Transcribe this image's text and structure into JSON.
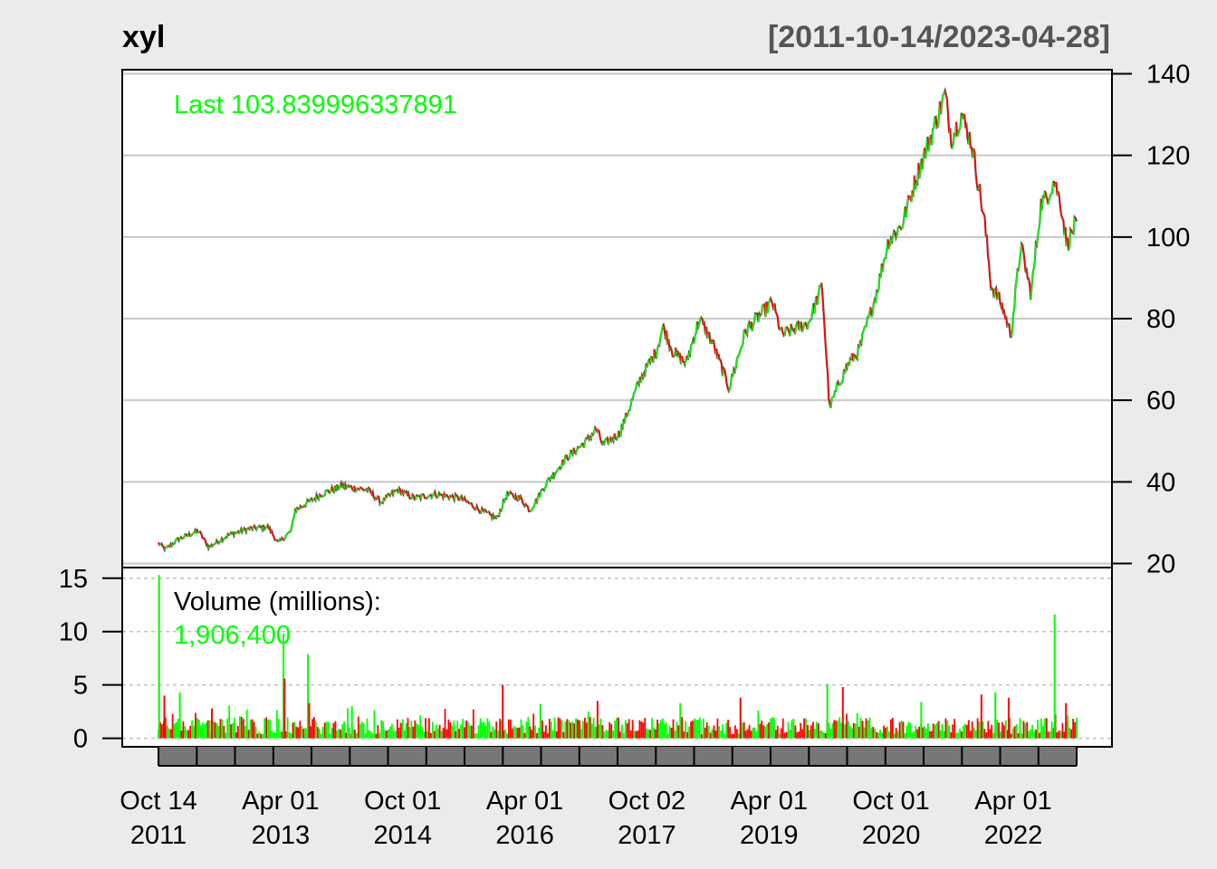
{
  "header": {
    "title": "xyl",
    "date_range": "[2011-10-14/2023-04-28]"
  },
  "price_panel": {
    "last_label": "Last 103.839996337891"
  },
  "volume_panel": {
    "label": "Volume (millions):",
    "value": "1,906,400"
  },
  "chart_data": [
    {
      "type": "line",
      "name": "price",
      "x_tick_labels": [
        [
          "Oct 14",
          "2011"
        ],
        [
          "Apr 01",
          "2013"
        ],
        [
          "Oct 01",
          "2014"
        ],
        [
          "Apr 01",
          "2016"
        ],
        [
          "Oct 02",
          "2017"
        ],
        [
          "Apr 01",
          "2019"
        ],
        [
          "Oct 01",
          "2020"
        ],
        [
          "Apr 01",
          "2022"
        ]
      ],
      "y_ticks": [
        20,
        40,
        60,
        80,
        100,
        120,
        140
      ],
      "ylim": [
        19,
        141
      ],
      "xlim": [
        "2011-10-14",
        "2023-04-28"
      ],
      "grid": true,
      "last_value": 103.839996337891,
      "colors": {
        "up": "#00ff00",
        "down": "#ff0000",
        "line": "#555555",
        "grid": "#c8c8c8",
        "background": "#ffffff"
      },
      "points": [
        [
          "2011-10-14",
          25
        ],
        [
          "2011-11-15",
          23.5
        ],
        [
          "2012-01-15",
          26
        ],
        [
          "2012-04-15",
          28
        ],
        [
          "2012-06-01",
          24
        ],
        [
          "2012-09-01",
          27
        ],
        [
          "2012-12-01",
          28.5
        ],
        [
          "2013-03-01",
          29
        ],
        [
          "2013-04-15",
          25
        ],
        [
          "2013-06-15",
          28
        ],
        [
          "2013-07-01",
          33
        ],
        [
          "2013-11-01",
          37
        ],
        [
          "2014-02-01",
          39
        ],
        [
          "2014-06-01",
          38
        ],
        [
          "2014-08-01",
          35
        ],
        [
          "2014-10-15",
          38
        ],
        [
          "2015-01-01",
          36
        ],
        [
          "2015-04-01",
          37
        ],
        [
          "2015-08-01",
          36
        ],
        [
          "2015-11-01",
          33
        ],
        [
          "2016-01-15",
          31
        ],
        [
          "2016-03-01",
          37
        ],
        [
          "2016-05-01",
          36
        ],
        [
          "2016-06-15",
          33
        ],
        [
          "2016-09-01",
          40
        ],
        [
          "2016-12-01",
          46
        ],
        [
          "2017-03-01",
          50
        ],
        [
          "2017-04-15",
          53
        ],
        [
          "2017-05-15",
          49
        ],
        [
          "2017-08-01",
          52
        ],
        [
          "2017-11-01",
          65
        ],
        [
          "2018-01-15",
          72
        ],
        [
          "2018-02-15",
          78
        ],
        [
          "2018-04-01",
          72
        ],
        [
          "2018-06-01",
          69
        ],
        [
          "2018-08-01",
          80
        ],
        [
          "2018-10-01",
          74
        ],
        [
          "2018-12-15",
          63
        ],
        [
          "2019-03-01",
          77
        ],
        [
          "2019-07-01",
          84
        ],
        [
          "2019-08-15",
          76
        ],
        [
          "2019-12-15",
          79
        ],
        [
          "2020-02-15",
          88
        ],
        [
          "2020-03-20",
          58
        ],
        [
          "2020-05-01",
          64
        ],
        [
          "2020-06-15",
          69
        ],
        [
          "2020-08-01",
          72
        ],
        [
          "2020-10-15",
          85
        ],
        [
          "2020-12-15",
          99
        ],
        [
          "2021-02-15",
          103
        ],
        [
          "2021-05-01",
          116
        ],
        [
          "2021-07-01",
          125
        ],
        [
          "2021-09-01",
          135
        ],
        [
          "2021-10-01",
          124
        ],
        [
          "2021-11-15",
          130
        ],
        [
          "2022-01-01",
          123
        ],
        [
          "2022-03-01",
          104
        ],
        [
          "2022-04-01",
          88
        ],
        [
          "2022-05-15",
          84
        ],
        [
          "2022-07-01",
          76
        ],
        [
          "2022-08-15",
          98
        ],
        [
          "2022-10-01",
          86
        ],
        [
          "2022-11-15",
          108
        ],
        [
          "2022-12-15",
          110
        ],
        [
          "2023-01-15",
          114
        ],
        [
          "2023-02-15",
          108
        ],
        [
          "2023-03-15",
          98
        ],
        [
          "2023-04-28",
          103.84
        ]
      ]
    },
    {
      "type": "bar",
      "name": "volume",
      "unit": "millions",
      "y_ticks": [
        0,
        5,
        10,
        15
      ],
      "ylim": [
        -0.8,
        16
      ],
      "grid": true,
      "last_value": 1.9064,
      "spikes": [
        [
          "2011-10-17",
          15.3
        ],
        [
          "2011-11-10",
          4.0
        ],
        [
          "2012-01-20",
          4.3
        ],
        [
          "2012-06-15",
          2.8
        ],
        [
          "2013-05-10",
          9.8
        ],
        [
          "2013-05-15",
          5.6
        ],
        [
          "2013-08-30",
          7.9
        ],
        [
          "2013-09-05",
          3.3
        ],
        [
          "2014-03-20",
          3.0
        ],
        [
          "2016-02-10",
          5.0
        ],
        [
          "2016-08-01",
          3.2
        ],
        [
          "2017-04-20",
          3.5
        ],
        [
          "2018-05-05",
          3.3
        ],
        [
          "2019-02-05",
          3.8
        ],
        [
          "2020-03-10",
          5.1
        ],
        [
          "2020-05-20",
          4.8
        ],
        [
          "2021-05-15",
          3.4
        ],
        [
          "2022-02-15",
          4.1
        ],
        [
          "2022-04-20",
          4.3
        ],
        [
          "2022-06-20",
          3.8
        ],
        [
          "2023-01-17",
          11.6
        ],
        [
          "2023-03-10",
          3.3
        ]
      ]
    }
  ]
}
